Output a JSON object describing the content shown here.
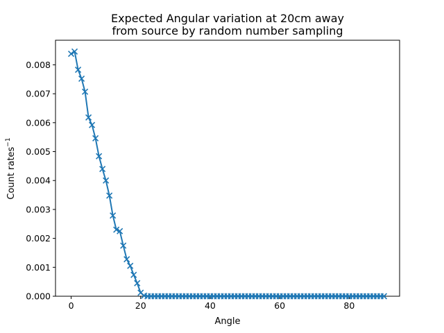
{
  "chart_data": {
    "type": "line",
    "title": [
      "Expected Angular variation at 20cm away",
      "from source by random number sampling"
    ],
    "xlabel": "Angle",
    "ylabel": "Count rates",
    "ylabel_superscript": "−1",
    "xlim": [
      -4.5,
      94.5
    ],
    "ylim": [
      0,
      0.00885
    ],
    "xticks": [
      0,
      20,
      40,
      60,
      80
    ],
    "yticks": [
      0.0,
      0.001,
      0.002,
      0.003,
      0.004,
      0.005,
      0.006,
      0.007,
      0.008
    ],
    "ytick_labels": [
      "0.000",
      "0.001",
      "0.002",
      "0.003",
      "0.004",
      "0.005",
      "0.006",
      "0.007",
      "0.008"
    ],
    "xtick_labels": [
      "0",
      "20",
      "40",
      "60",
      "80"
    ],
    "grid": false,
    "series_color": "#1f77b4",
    "marker": "x",
    "x": [
      0,
      1,
      2,
      3,
      4,
      5,
      6,
      7,
      8,
      9,
      10,
      11,
      12,
      13,
      14,
      15,
      16,
      17,
      18,
      19,
      20,
      21,
      22,
      23,
      24,
      25,
      26,
      27,
      28,
      29,
      30,
      31,
      32,
      33,
      34,
      35,
      36,
      37,
      38,
      39,
      40,
      41,
      42,
      43,
      44,
      45,
      46,
      47,
      48,
      49,
      50,
      51,
      52,
      53,
      54,
      55,
      56,
      57,
      58,
      59,
      60,
      61,
      62,
      63,
      64,
      65,
      66,
      67,
      68,
      69,
      70,
      71,
      72,
      73,
      74,
      75,
      76,
      77,
      78,
      79,
      80,
      81,
      82,
      83,
      84,
      85,
      86,
      87,
      88,
      89,
      90
    ],
    "y": [
      0.00838,
      0.00846,
      0.00783,
      0.00752,
      0.00707,
      0.00618,
      0.00592,
      0.00546,
      0.00484,
      0.0044,
      0.004,
      0.00348,
      0.00279,
      0.0023,
      0.00225,
      0.00175,
      0.00128,
      0.00105,
      0.00074,
      0.00045,
      0.00012,
      2e-05,
      0,
      0,
      0,
      0,
      0,
      0,
      0,
      0,
      0,
      0,
      0,
      0,
      0,
      0,
      0,
      0,
      0,
      0,
      0,
      0,
      0,
      0,
      0,
      0,
      0,
      0,
      0,
      0,
      0,
      0,
      0,
      0,
      0,
      0,
      0,
      0,
      0,
      0,
      0,
      0,
      0,
      0,
      0,
      0,
      0,
      0,
      0,
      0,
      0,
      0,
      0,
      0,
      0,
      0,
      0,
      0,
      0,
      0,
      0,
      0,
      0,
      0,
      0,
      0,
      0,
      0,
      0,
      0,
      0
    ]
  }
}
